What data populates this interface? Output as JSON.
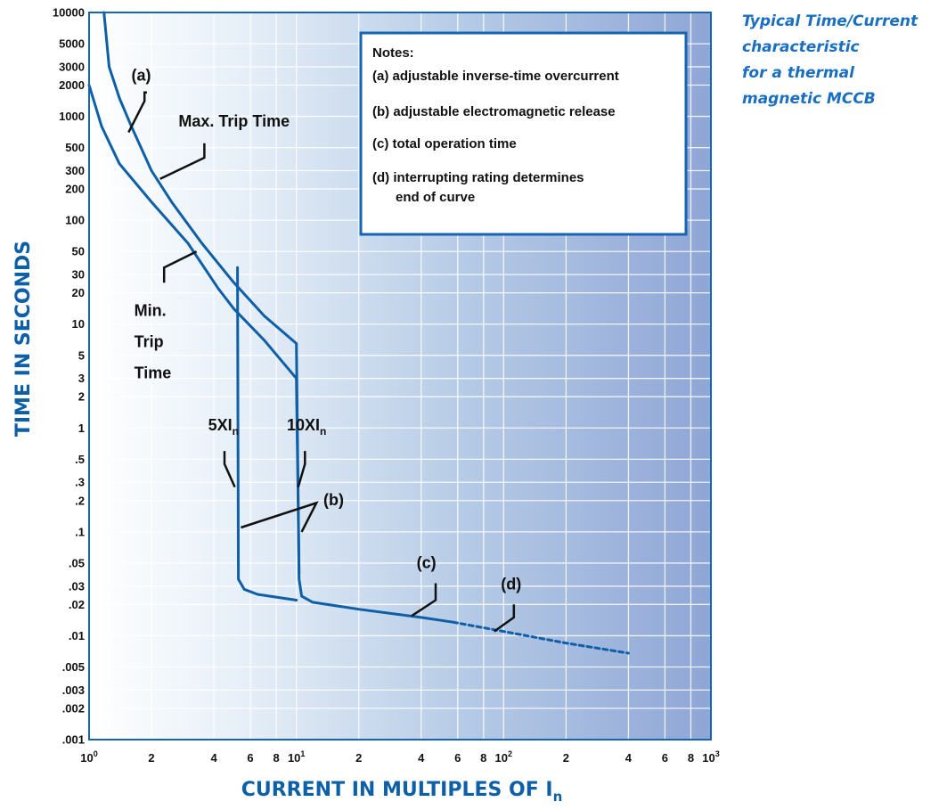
{
  "caption": [
    "Typical Time/Current",
    "characteristic",
    "for a thermal",
    "magnetic MCCB"
  ],
  "colors": {
    "curve": "#0d5fa8",
    "axis_title": "#0d5fa8",
    "caption": "#1a6fc0",
    "frame": "#1565b3"
  },
  "chart_data": {
    "type": "line",
    "xscale": "log",
    "yscale": "log",
    "xlim": [
      1,
      1000
    ],
    "ylim": [
      0.001,
      10000
    ],
    "grid": true,
    "xlabel": "CURRENT IN MULTIPLES OF I",
    "xlabel_sub": "n",
    "ylabel": "TIME IN SECONDS",
    "x_ticks": [
      {
        "value": 1,
        "label": "10",
        "sup": "0"
      },
      {
        "value": 2,
        "label": "2"
      },
      {
        "value": 4,
        "label": "4"
      },
      {
        "value": 6,
        "label": "6"
      },
      {
        "value": 8,
        "label": "8"
      },
      {
        "value": 10,
        "label": "10",
        "sup": "1"
      },
      {
        "value": 20,
        "label": "2"
      },
      {
        "value": 40,
        "label": "4"
      },
      {
        "value": 60,
        "label": "6"
      },
      {
        "value": 80,
        "label": "8"
      },
      {
        "value": 100,
        "label": "10",
        "sup": "2"
      },
      {
        "value": 200,
        "label": "2"
      },
      {
        "value": 400,
        "label": "4"
      },
      {
        "value": 600,
        "label": "6"
      },
      {
        "value": 800,
        "label": "8"
      },
      {
        "value": 1000,
        "label": "10",
        "sup": "3"
      }
    ],
    "y_ticks": [
      {
        "value": 10000,
        "label": "10000"
      },
      {
        "value": 5000,
        "label": "5000"
      },
      {
        "value": 3000,
        "label": "3000"
      },
      {
        "value": 2000,
        "label": "2000"
      },
      {
        "value": 1000,
        "label": "1000"
      },
      {
        "value": 500,
        "label": "500"
      },
      {
        "value": 300,
        "label": "300"
      },
      {
        "value": 200,
        "label": "200"
      },
      {
        "value": 100,
        "label": "100"
      },
      {
        "value": 50,
        "label": "50"
      },
      {
        "value": 30,
        "label": "30"
      },
      {
        "value": 20,
        "label": "20"
      },
      {
        "value": 10,
        "label": "10"
      },
      {
        "value": 5,
        "label": "5"
      },
      {
        "value": 3,
        "label": "3"
      },
      {
        "value": 2,
        "label": "2"
      },
      {
        "value": 1,
        "label": "1"
      },
      {
        "value": 0.5,
        "label": ".5"
      },
      {
        "value": 0.3,
        "label": ".3"
      },
      {
        "value": 0.2,
        "label": ".2"
      },
      {
        "value": 0.1,
        "label": ".1"
      },
      {
        "value": 0.05,
        "label": ".05"
      },
      {
        "value": 0.03,
        "label": ".03"
      },
      {
        "value": 0.02,
        "label": ".02"
      },
      {
        "value": 0.01,
        "label": ".01"
      },
      {
        "value": 0.005,
        "label": ".005"
      },
      {
        "value": 0.003,
        "label": ".003"
      },
      {
        "value": 0.002,
        "label": ".002"
      },
      {
        "value": 0.001,
        "label": ".001"
      }
    ],
    "series": [
      {
        "style": "solid",
        "points": [
          [
            1.18,
            10000
          ],
          [
            1.25,
            3000
          ],
          [
            1.4,
            1500
          ],
          [
            1.6,
            800
          ],
          [
            2.0,
            300
          ],
          [
            2.5,
            150
          ],
          [
            3.5,
            60
          ],
          [
            5,
            25
          ],
          [
            7,
            12
          ],
          [
            10,
            6.5
          ],
          [
            10.3,
            0.035
          ],
          [
            10.6,
            0.024
          ],
          [
            12,
            0.021
          ],
          [
            20,
            0.018
          ],
          [
            40,
            0.015
          ],
          [
            57,
            0.0135
          ]
        ]
      },
      {
        "style": "solid",
        "points": [
          [
            1.0,
            2000
          ],
          [
            1.15,
            800
          ],
          [
            1.4,
            350
          ],
          [
            2.0,
            150
          ],
          [
            3.0,
            60
          ],
          [
            4.2,
            22
          ],
          [
            5,
            14
          ],
          [
            7,
            7
          ],
          [
            10,
            3
          ],
          [
            10.3,
            0.04
          ]
        ]
      },
      {
        "style": "solid",
        "points": [
          [
            5.2,
            35
          ],
          [
            5.25,
            0.035
          ],
          [
            5.6,
            0.028
          ],
          [
            6.5,
            0.025
          ],
          [
            10,
            0.022
          ]
        ]
      },
      {
        "style": "dashed",
        "points": [
          [
            57,
            0.0135
          ],
          [
            100,
            0.011
          ],
          [
            200,
            0.0085
          ],
          [
            400,
            0.0068
          ]
        ]
      }
    ],
    "annotations": [
      {
        "label": "(a)",
        "line": [
          [
            1.55,
            700
          ],
          [
            1.85,
            1400
          ],
          [
            1.85,
            1700
          ],
          [
            1.9,
            1700
          ]
        ],
        "text_at": [
          1.6,
          2200
        ]
      },
      {
        "label": "Max. Trip Time",
        "line": [
          [
            2.2,
            250
          ],
          [
            3.6,
            400
          ],
          [
            3.6,
            550
          ]
        ],
        "text_at": [
          2.7,
          800
        ]
      },
      {
        "label": "Min.",
        "line": [
          [
            3.3,
            50
          ],
          [
            2.3,
            35
          ],
          [
            2.3,
            25
          ]
        ],
        "text_at": [
          1.65,
          12
        ]
      },
      {
        "label": "Trip",
        "text_at": [
          1.65,
          6
        ]
      },
      {
        "label": "Time",
        "text_at": [
          1.65,
          3
        ]
      },
      {
        "label": "5XI",
        "sub": "n",
        "line": [
          [
            5.05,
            0.27
          ],
          [
            4.5,
            0.45
          ],
          [
            4.5,
            0.6
          ]
        ],
        "text_at": [
          3.75,
          0.95
        ]
      },
      {
        "label": "10XI",
        "sub": "n",
        "line": [
          [
            10.2,
            0.27
          ],
          [
            11.0,
            0.45
          ],
          [
            11.0,
            0.6
          ]
        ],
        "text_at": [
          9.0,
          0.95
        ]
      },
      {
        "label": "(b)",
        "line": [
          [
            5.4,
            0.11
          ],
          [
            12.5,
            0.19
          ],
          [
            10.6,
            0.1
          ]
        ],
        "text_at": [
          13.5,
          0.18
        ]
      },
      {
        "label": "(c)",
        "line": [
          [
            36,
            0.0155
          ],
          [
            47,
            0.022
          ],
          [
            47,
            0.032
          ]
        ],
        "text_at": [
          38,
          0.045
        ]
      },
      {
        "label": "(d)",
        "line": [
          [
            90,
            0.011
          ],
          [
            112,
            0.015
          ],
          [
            112,
            0.02
          ]
        ],
        "text_at": [
          97,
          0.028
        ]
      }
    ],
    "notes": {
      "title": "Notes:",
      "items": [
        "(a) adjustable inverse-time overcurrent",
        "(b) adjustable electromagnetic release",
        "(c) total operation time",
        "(d) interrupting rating determines",
        "end of curve"
      ]
    }
  }
}
